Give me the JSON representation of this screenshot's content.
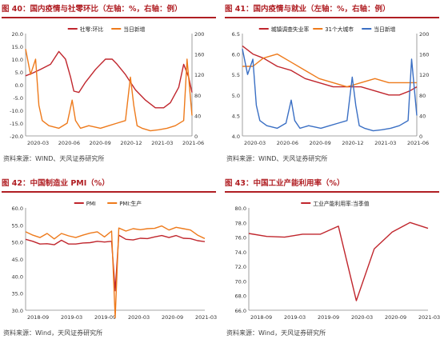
{
  "colors": {
    "red": "#c0262d",
    "orange": "#ee7a1b",
    "blue": "#3a6fc4",
    "title": "#b01e23"
  },
  "panels": [
    {
      "num": "图 40：",
      "title": "国内疫情与社零环比（左轴：%，右轴：例）",
      "source": "资料来源：WIND、天风证券研究所"
    },
    {
      "num": "图 41：",
      "title": "国内疫情与就业（左轴：%，右轴：例）",
      "source": "资料来源：WIND、天风证券研究所"
    },
    {
      "num": "图 42：",
      "title": "中国制造业 PMI（%）",
      "source": "资料来源：Wind，天风证券研究所"
    },
    {
      "num": "图 43：",
      "title": "中国工业产能利用率（%）",
      "source": "资料来源：Wind，天风证券研究所"
    }
  ],
  "chart_data": [
    {
      "type": "line",
      "ylim": [
        -20,
        20
      ],
      "yticks": [
        "20.0",
        "15.0",
        "10.0",
        "5.0",
        "0.0",
        "-5.0",
        "-10.0",
        "-15.0",
        "-20.0"
      ],
      "y2lim": [
        0,
        200
      ],
      "y2ticks": [
        "200",
        "160",
        "120",
        "80",
        "40",
        "0"
      ],
      "xticks": [
        "2020-03",
        "2020-06",
        "2020-09",
        "2020-12",
        "2021-03",
        "2021-06"
      ],
      "legend": [
        "社零:环比",
        "当日新增"
      ],
      "series": [
        {
          "name": "社零:环比",
          "axis": "left",
          "color": "red",
          "x": [
            0,
            0.04,
            0.09,
            0.15,
            0.2,
            0.24,
            0.27,
            0.29,
            0.32,
            0.36,
            0.42,
            0.48,
            0.52,
            0.55,
            0.6,
            0.66,
            0.72,
            0.78,
            0.83,
            0.87,
            0.92,
            0.95,
            0.98,
            1.0
          ],
          "values": [
            3.5,
            4.5,
            6,
            8,
            13,
            10,
            3,
            -2.5,
            -3,
            1,
            6,
            10,
            10,
            8,
            4,
            -2,
            -6,
            -9,
            -9,
            -7,
            -1,
            8,
            3,
            -3
          ]
        },
        {
          "name": "当日新增",
          "axis": "right",
          "color": "orange",
          "x": [
            0,
            0.03,
            0.06,
            0.08,
            0.1,
            0.14,
            0.2,
            0.25,
            0.28,
            0.3,
            0.33,
            0.38,
            0.45,
            0.5,
            0.55,
            0.6,
            0.63,
            0.65,
            0.67,
            0.7,
            0.75,
            0.8,
            0.85,
            0.9,
            0.95,
            0.97,
            1.0
          ],
          "values": [
            170,
            120,
            150,
            60,
            30,
            20,
            15,
            25,
            70,
            30,
            15,
            20,
            15,
            20,
            25,
            30,
            115,
            60,
            20,
            15,
            10,
            12,
            15,
            20,
            30,
            150,
            40
          ]
        }
      ]
    },
    {
      "type": "line",
      "ylim": [
        4,
        6.5
      ],
      "yticks": [
        "6.5",
        "6.0",
        "5.5",
        "5.0",
        "4.5",
        "4.0"
      ],
      "y2lim": [
        0,
        200
      ],
      "y2ticks": [
        "200",
        "160",
        "120",
        "80",
        "40",
        "0"
      ],
      "xticks": [
        "2020-03",
        "2020-06",
        "2020-09",
        "2020-12",
        "2021-03",
        "2021-06"
      ],
      "legend": [
        "城镇调查失业率",
        "31个大城市",
        "当日新增"
      ],
      "series": [
        {
          "name": "城镇调查失业率",
          "axis": "left",
          "color": "red",
          "x": [
            0,
            0.06,
            0.12,
            0.2,
            0.28,
            0.36,
            0.44,
            0.52,
            0.6,
            0.68,
            0.76,
            0.84,
            0.9,
            0.96,
            1.0
          ],
          "values": [
            6.2,
            6.0,
            5.9,
            5.7,
            5.6,
            5.4,
            5.3,
            5.2,
            5.2,
            5.2,
            5.1,
            5.0,
            5.0,
            5.1,
            5.2
          ]
        },
        {
          "name": "31个大城市",
          "axis": "left",
          "color": "orange",
          "x": [
            0,
            0.06,
            0.12,
            0.2,
            0.28,
            0.36,
            0.44,
            0.52,
            0.6,
            0.68,
            0.76,
            0.84,
            0.9,
            0.96,
            1.0
          ],
          "values": [
            5.7,
            5.7,
            5.9,
            6.0,
            5.8,
            5.6,
            5.4,
            5.3,
            5.2,
            5.3,
            5.4,
            5.3,
            5.3,
            5.3,
            5.3
          ]
        },
        {
          "name": "当日新增",
          "axis": "right",
          "color": "blue",
          "x": [
            0,
            0.03,
            0.06,
            0.08,
            0.1,
            0.14,
            0.2,
            0.25,
            0.28,
            0.3,
            0.33,
            0.38,
            0.45,
            0.5,
            0.55,
            0.6,
            0.63,
            0.65,
            0.67,
            0.7,
            0.75,
            0.8,
            0.85,
            0.9,
            0.95,
            0.97,
            1.0
          ],
          "values": [
            170,
            120,
            150,
            60,
            30,
            20,
            15,
            25,
            70,
            30,
            15,
            20,
            15,
            20,
            25,
            30,
            115,
            60,
            20,
            15,
            10,
            12,
            15,
            20,
            30,
            150,
            40
          ]
        }
      ]
    },
    {
      "type": "line",
      "ylim": [
        30,
        60
      ],
      "yticks": [
        "60.0",
        "55.0",
        "50.0",
        "45.0",
        "40.0",
        "35.0",
        "30.0"
      ],
      "xticks": [
        "2018-09",
        "2019-03",
        "2019-09",
        "2020-03",
        "2020-09",
        "2021-03"
      ],
      "legend": [
        "PMI",
        "PMI:生产"
      ],
      "series": [
        {
          "name": "PMI",
          "color": "red",
          "x": [
            0,
            0.04,
            0.08,
            0.12,
            0.16,
            0.2,
            0.24,
            0.28,
            0.32,
            0.36,
            0.4,
            0.44,
            0.48,
            0.5,
            0.52,
            0.56,
            0.6,
            0.64,
            0.68,
            0.72,
            0.76,
            0.8,
            0.84,
            0.88,
            0.92,
            0.96,
            1.0
          ],
          "values": [
            50.8,
            50.2,
            49.4,
            49.5,
            49.2,
            50.5,
            49.4,
            49.4,
            49.7,
            49.8,
            50.2,
            50.0,
            50.2,
            35.7,
            52.0,
            50.8,
            50.6,
            51.1,
            51.0,
            51.5,
            51.9,
            51.3,
            51.9,
            51.1,
            51.0,
            50.4,
            50.1
          ]
        },
        {
          "name": "PMI:生产",
          "color": "orange",
          "x": [
            0,
            0.04,
            0.08,
            0.12,
            0.16,
            0.2,
            0.24,
            0.28,
            0.32,
            0.36,
            0.4,
            0.44,
            0.48,
            0.5,
            0.52,
            0.56,
            0.6,
            0.64,
            0.68,
            0.72,
            0.76,
            0.8,
            0.84,
            0.88,
            0.92,
            0.96,
            1.0
          ],
          "values": [
            53.0,
            52.0,
            51.3,
            52.5,
            50.9,
            52.5,
            51.8,
            51.3,
            52.0,
            52.6,
            53.0,
            51.5,
            53.2,
            27.8,
            54.1,
            53.2,
            53.9,
            53.6,
            53.9,
            54.0,
            54.7,
            53.5,
            54.3,
            53.9,
            53.5,
            52.0,
            51.0
          ]
        }
      ]
    },
    {
      "type": "line",
      "ylim": [
        66,
        80
      ],
      "yticks": [
        "80.0",
        "78.0",
        "76.0",
        "74.0",
        "72.0",
        "70.0",
        "68.0",
        "66.0"
      ],
      "xticks": [
        "2018-09",
        "2019-03",
        "2019-09",
        "2020-03",
        "2020-09",
        "2021-03"
      ],
      "legend": [
        "工业产能利用率:当季值"
      ],
      "series": [
        {
          "name": "工业产能利用率:当季值",
          "color": "red",
          "x": [
            0,
            0.1,
            0.2,
            0.3,
            0.4,
            0.5,
            0.6,
            0.7,
            0.8,
            0.9,
            1.0
          ],
          "values": [
            76.5,
            76.1,
            76.0,
            76.4,
            76.4,
            77.5,
            67.3,
            74.4,
            76.7,
            78.0,
            77.2
          ]
        }
      ]
    }
  ]
}
